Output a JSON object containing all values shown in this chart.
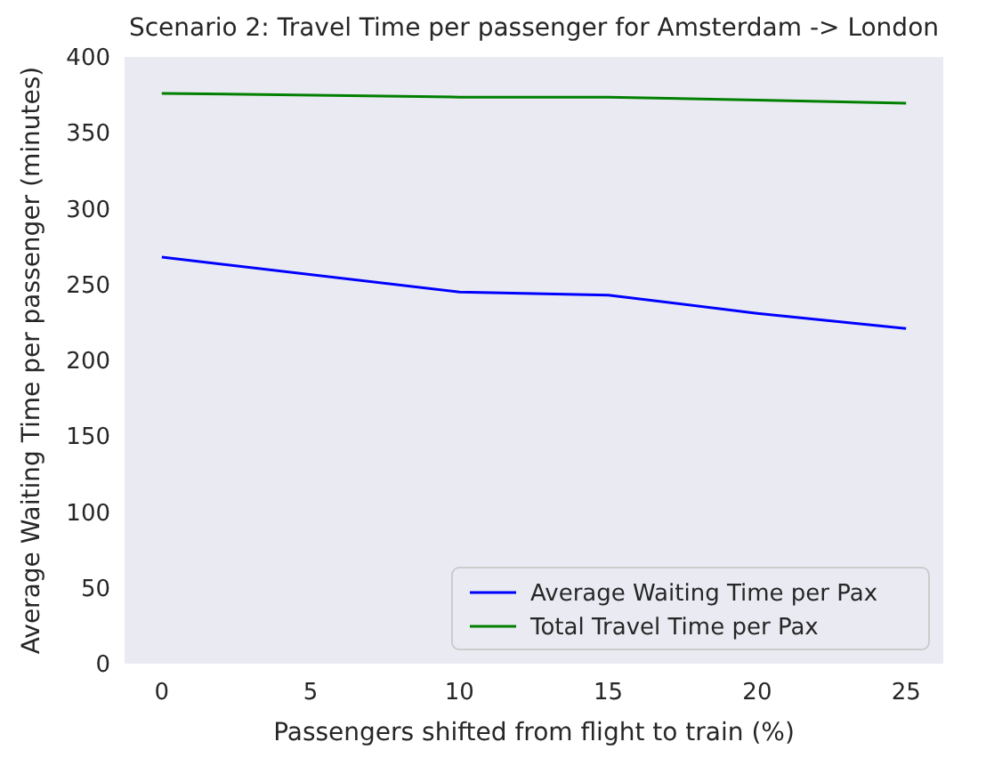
{
  "chart_data": {
    "type": "line",
    "title": "Scenario 2: Travel Time per passenger for Amsterdam -> London",
    "xlabel": "Passengers shifted from flight to train (%)",
    "ylabel": "Average Waiting Time per passenger (minutes)",
    "x": [
      0,
      10,
      15,
      20,
      25
    ],
    "series": [
      {
        "name": "Average Waiting Time per Pax",
        "color": "#0000ff",
        "values": [
          268,
          245,
          243,
          231,
          221
        ]
      },
      {
        "name": "Total Travel Time per Pax",
        "color": "#008000",
        "values": [
          376,
          373.5,
          373.5,
          371.5,
          369.5
        ]
      }
    ],
    "xlim": [
      -1.25,
      26.25
    ],
    "xticks": [
      0,
      5,
      10,
      15,
      20,
      25
    ],
    "ylim": [
      0,
      400
    ],
    "yticks": [
      0,
      50,
      100,
      150,
      200,
      250,
      300,
      350,
      400
    ],
    "grid": false,
    "legend": "bottom right",
    "marker": "none",
    "line_style": "solid"
  }
}
